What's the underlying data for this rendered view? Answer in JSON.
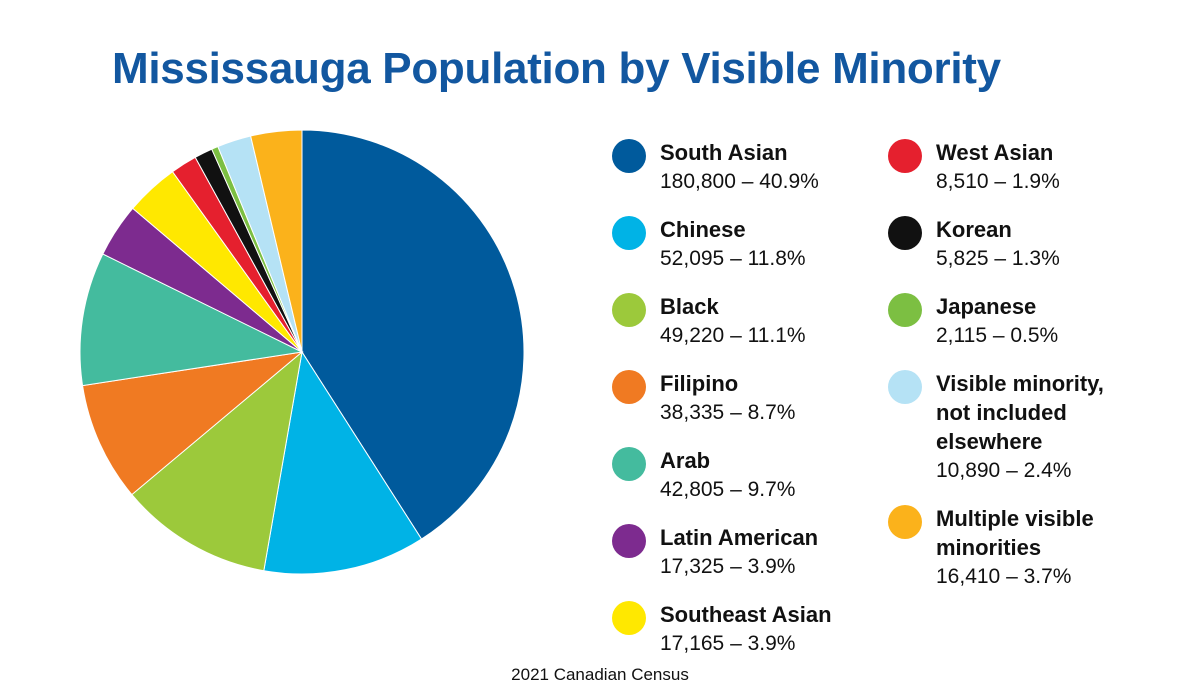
{
  "chart_data": {
    "type": "pie",
    "title": "Mississauga Population by Visible Minority",
    "source": "2021 Canadian Census",
    "slices": [
      {
        "name": "South Asian",
        "value": 180800,
        "value_label": "180,800 – 40.9%",
        "color": "#005a9c"
      },
      {
        "name": "Chinese",
        "value": 52095,
        "value_label": "52,095 – 11.8%",
        "color": "#00b3e6"
      },
      {
        "name": "Black",
        "value": 49220,
        "value_label": "49,220 – 11.1%",
        "color": "#9cc93b"
      },
      {
        "name": "Filipino",
        "value": 38335,
        "value_label": "38,335 – 8.7%",
        "color": "#f07a22"
      },
      {
        "name": "Arab",
        "value": 42805,
        "value_label": "42,805 – 9.7%",
        "color": "#44bb9e"
      },
      {
        "name": "Latin American",
        "value": 17325,
        "value_label": "17,325 – 3.9%",
        "color": "#7d2b8f"
      },
      {
        "name": "Southeast Asian",
        "value": 17165,
        "value_label": "17,165 – 3.9%",
        "color": "#ffe800"
      },
      {
        "name": "West Asian",
        "value": 8510,
        "value_label": "8,510 – 1.9%",
        "color": "#e5202e"
      },
      {
        "name": "Korean",
        "value": 5825,
        "value_label": "5,825 – 1.3%",
        "color": "#111111"
      },
      {
        "name": "Japanese",
        "value": 2115,
        "value_label": "2,115 – 0.5%",
        "color": "#7cbf42"
      },
      {
        "name": "Visible minority,\nnot included\nelsewhere",
        "value": 10890,
        "value_label": "10,890 – 2.4%",
        "color": "#b5e2f5"
      },
      {
        "name": "Multiple visible\nminorities",
        "value": 16410,
        "value_label": "16,410 – 3.7%",
        "color": "#fbb21b"
      }
    ],
    "legend_placement": "right"
  }
}
